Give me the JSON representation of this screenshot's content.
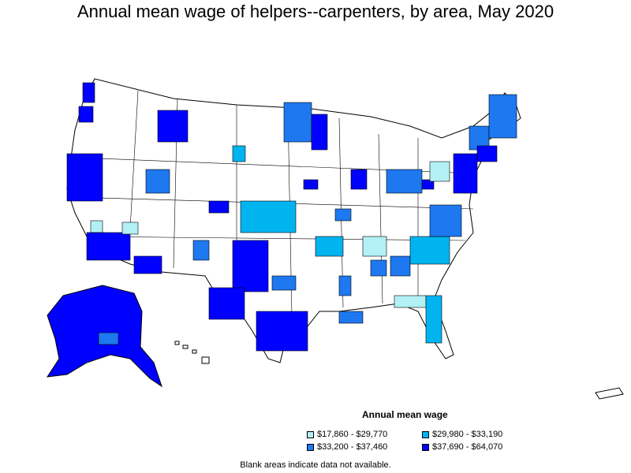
{
  "title": "Annual mean wage of helpers--carpenters, by area, May 2020",
  "legend": {
    "title": "Annual mean wage",
    "items": [
      {
        "label": "$17,860 - $29,770",
        "color": "#b3f0f5"
      },
      {
        "label": "$29,980 - $33,190",
        "color": "#00b4f0"
      },
      {
        "label": "$33,200 - $37,460",
        "color": "#1e78f0"
      },
      {
        "label": "$37,690 - $64,070",
        "color": "#0000ff"
      }
    ]
  },
  "note": "Blank areas indicate data not available."
}
